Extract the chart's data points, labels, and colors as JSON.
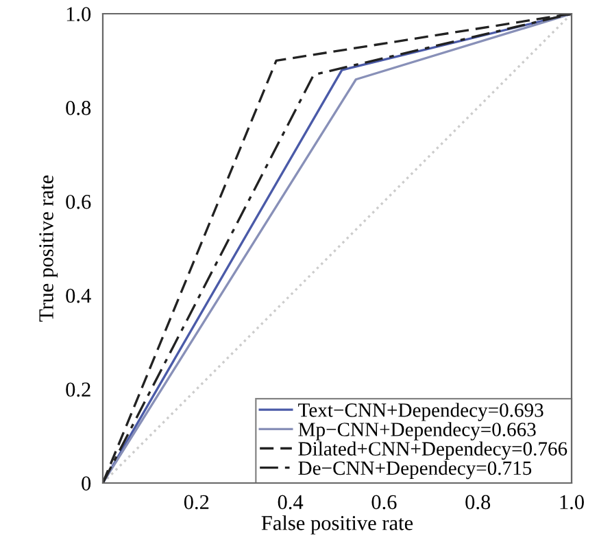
{
  "chart_data": {
    "type": "line",
    "xlabel": "False positive rate",
    "ylabel": "True positive rate",
    "xlim": [
      0,
      1
    ],
    "ylim": [
      0,
      1
    ],
    "xticks": [
      0.2,
      0.4,
      0.6,
      0.8,
      {
        "value": 1,
        "label": "1.0"
      }
    ],
    "yticks": [
      0,
      0.2,
      0.4,
      0.6,
      0.8,
      {
        "value": 1,
        "label": "1.0"
      }
    ],
    "grid": false,
    "legend": "bottom right",
    "marker": "none",
    "series": [
      {
        "x": [
          0,
          1
        ],
        "values": [
          0,
          1
        ],
        "color": "#cccccc",
        "line_style": "dotted"
      },
      {
        "name": "Text−CNN+Dependecy=0.693",
        "x": [
          0,
          0.51,
          1
        ],
        "values": [
          0,
          0.88,
          1
        ],
        "color": "#4a5aa8",
        "line_style": "solid"
      },
      {
        "name": "Mp−CNN+Dependecy=0.663",
        "x": [
          0,
          0.54,
          1
        ],
        "values": [
          0,
          0.86,
          1
        ],
        "color": "#8890b8",
        "line_style": "solid"
      },
      {
        "name": "Dilated+CNN+Dependecy=0.766",
        "x": [
          0,
          0.37,
          1
        ],
        "values": [
          0,
          0.9,
          1
        ],
        "color": "#222222",
        "line_style": "dashed"
      },
      {
        "name": "De−CNN+Dependecy=0.715",
        "x": [
          0,
          0.45,
          1
        ],
        "values": [
          0,
          0.87,
          1
        ],
        "color": "#222222",
        "line_style": "dashdot"
      }
    ]
  }
}
